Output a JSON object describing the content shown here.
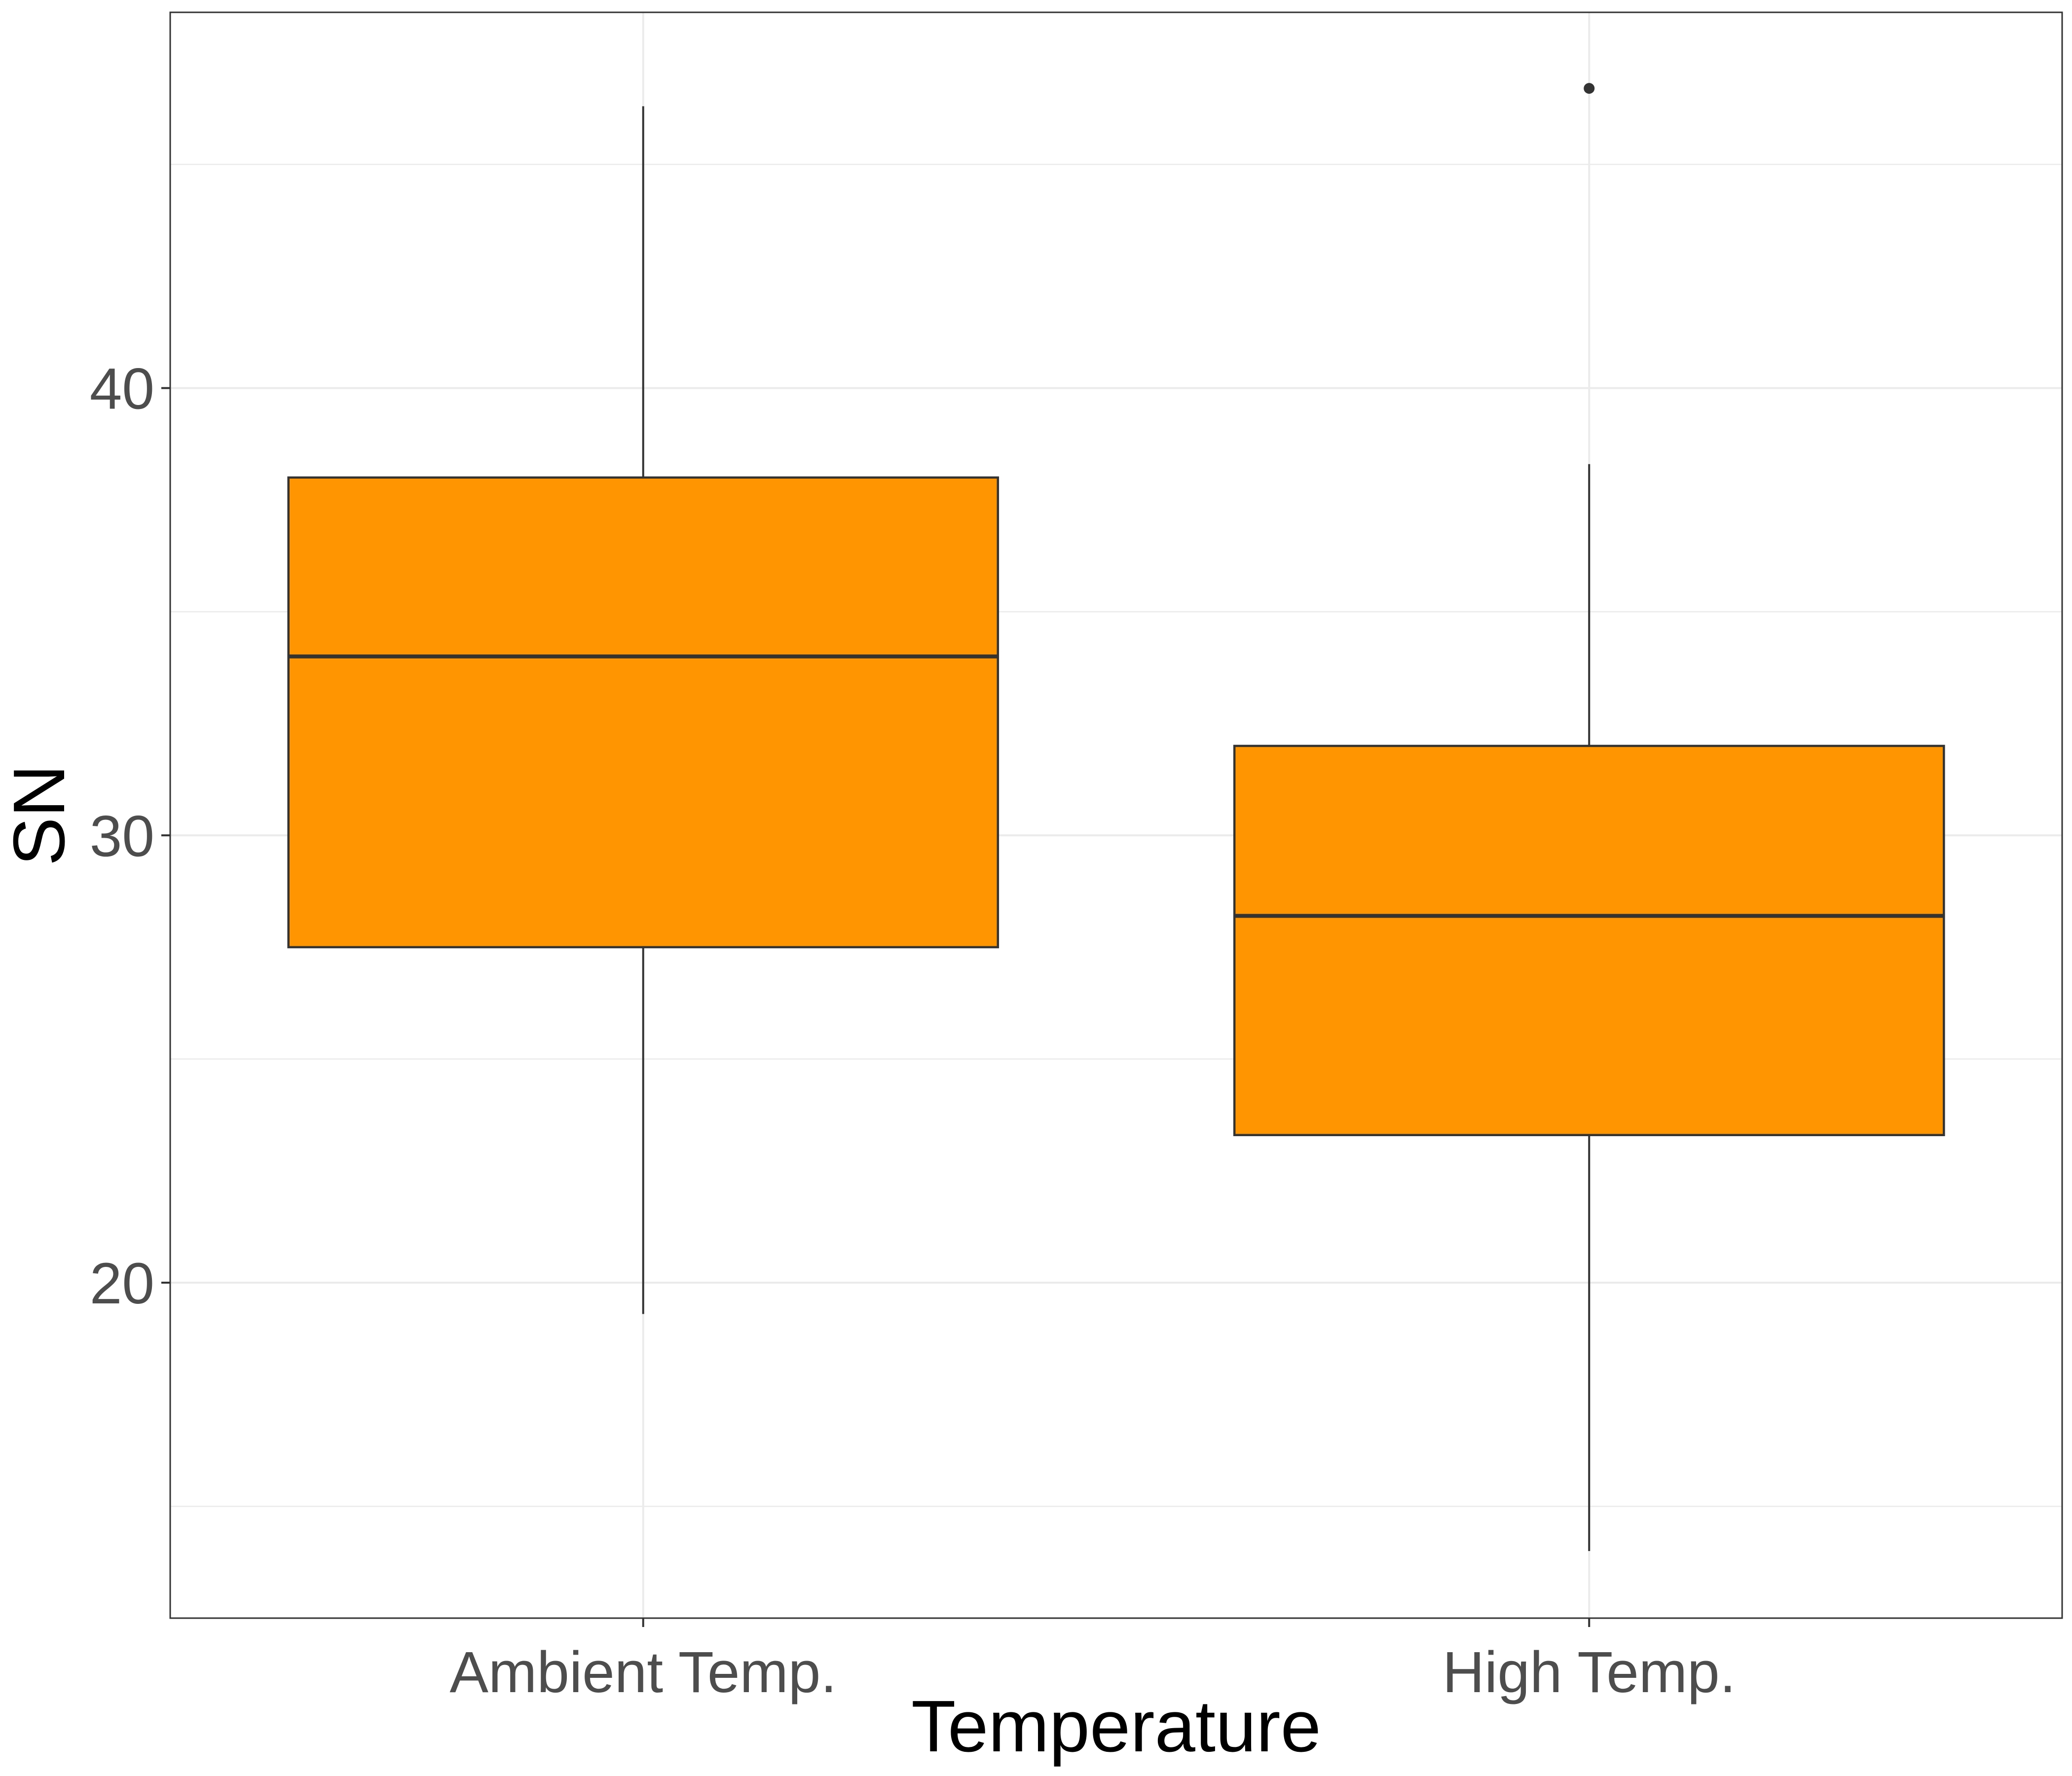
{
  "chart_data": {
    "type": "box",
    "title": "",
    "xlabel": "Temperature",
    "ylabel": "SN",
    "ylim": [
      12.5,
      48.4
    ],
    "yticks": [
      20,
      30,
      40
    ],
    "ytick_labels": [
      "20",
      "30",
      "40"
    ],
    "grid": true,
    "legend": "none",
    "categories": [
      "Ambient Temp.",
      "High Temp."
    ],
    "boxes": [
      {
        "category": "Ambient Temp.",
        "whisker_low": 19.3,
        "q1": 27.5,
        "median": 34.0,
        "q3": 38.0,
        "whisker_high": 46.3,
        "outliers": []
      },
      {
        "category": "High Temp.",
        "whisker_low": 14.0,
        "q1": 23.3,
        "median": 28.2,
        "q3": 32.0,
        "whisker_high": 38.3,
        "outliers": [
          46.7
        ]
      }
    ],
    "colors": {
      "fill": "#ff9500",
      "outline": "#333333",
      "grid": "#ebebeb",
      "panel_border": "#333333"
    }
  }
}
